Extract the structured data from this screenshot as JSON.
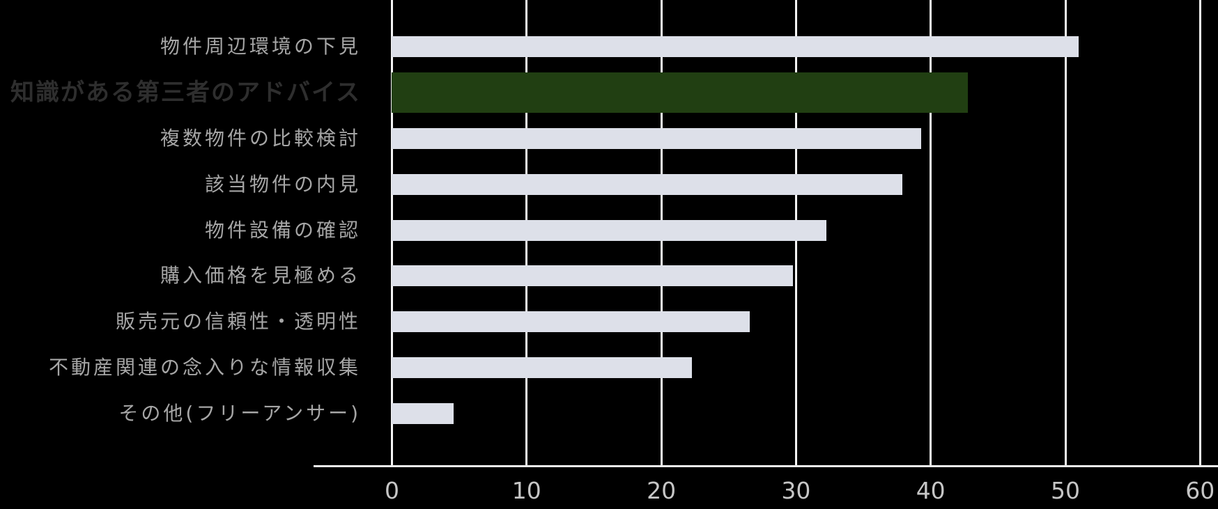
{
  "chart_data": {
    "type": "bar",
    "orientation": "horizontal",
    "title": "",
    "xlabel": "",
    "ylabel": "",
    "categories": [
      "物件周辺環境の下見",
      "知識がある第三者のアドバイス",
      "複数物件の比較検討",
      "該当物件の内見",
      "物件設備の確認",
      "購入価格を見極める",
      "販売元の信頼性・透明性",
      "不動産関連の念入りな情報収集",
      "その他(フリーアンサー)"
    ],
    "values": [
      51.0,
      42.8,
      39.3,
      37.9,
      32.3,
      29.8,
      26.6,
      22.3,
      4.6
    ],
    "highlight_index": 1,
    "highlighted_category": "知識がある第三者のアドバイス",
    "xlim": [
      0,
      60
    ],
    "x_ticks": [
      0,
      10,
      20,
      30,
      40,
      50,
      60
    ],
    "grid": "vertical",
    "legend": "none"
  },
  "colors": {
    "background": "#000000",
    "bar_default": "#dde0e9",
    "bar_highlight": "#213f12",
    "gridline": "#f5f5f5",
    "axis_line": "#ededed",
    "tick_label": "#c6c6c6",
    "category_label": "#a6a6a6",
    "highlight_label": "#2e2e2e"
  }
}
